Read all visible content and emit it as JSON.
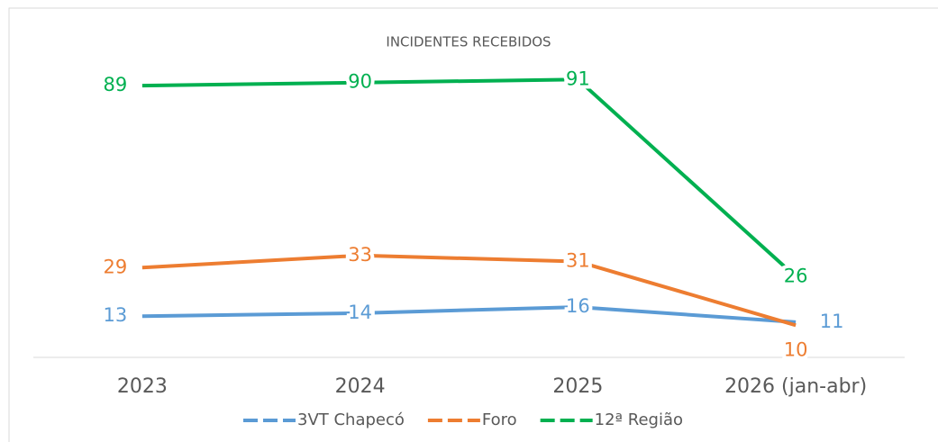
{
  "chart_data": {
    "type": "line",
    "title": "INCIDENTES RECEBIDOS",
    "categories": [
      "2023",
      "2024",
      "2025",
      "2026 (jan-abr)"
    ],
    "series": [
      {
        "name": "3VT Chapecó",
        "color": "#5b9bd5",
        "values": [
          13,
          14,
          16,
          11
        ]
      },
      {
        "name": "Foro",
        "color": "#ed7d31",
        "values": [
          29,
          33,
          31,
          10
        ]
      },
      {
        "name": "12ª Região",
        "color": "#00b050",
        "values": [
          89,
          90,
          91,
          26
        ]
      }
    ],
    "ylim": [
      0,
      100
    ],
    "legend": "bottom"
  }
}
